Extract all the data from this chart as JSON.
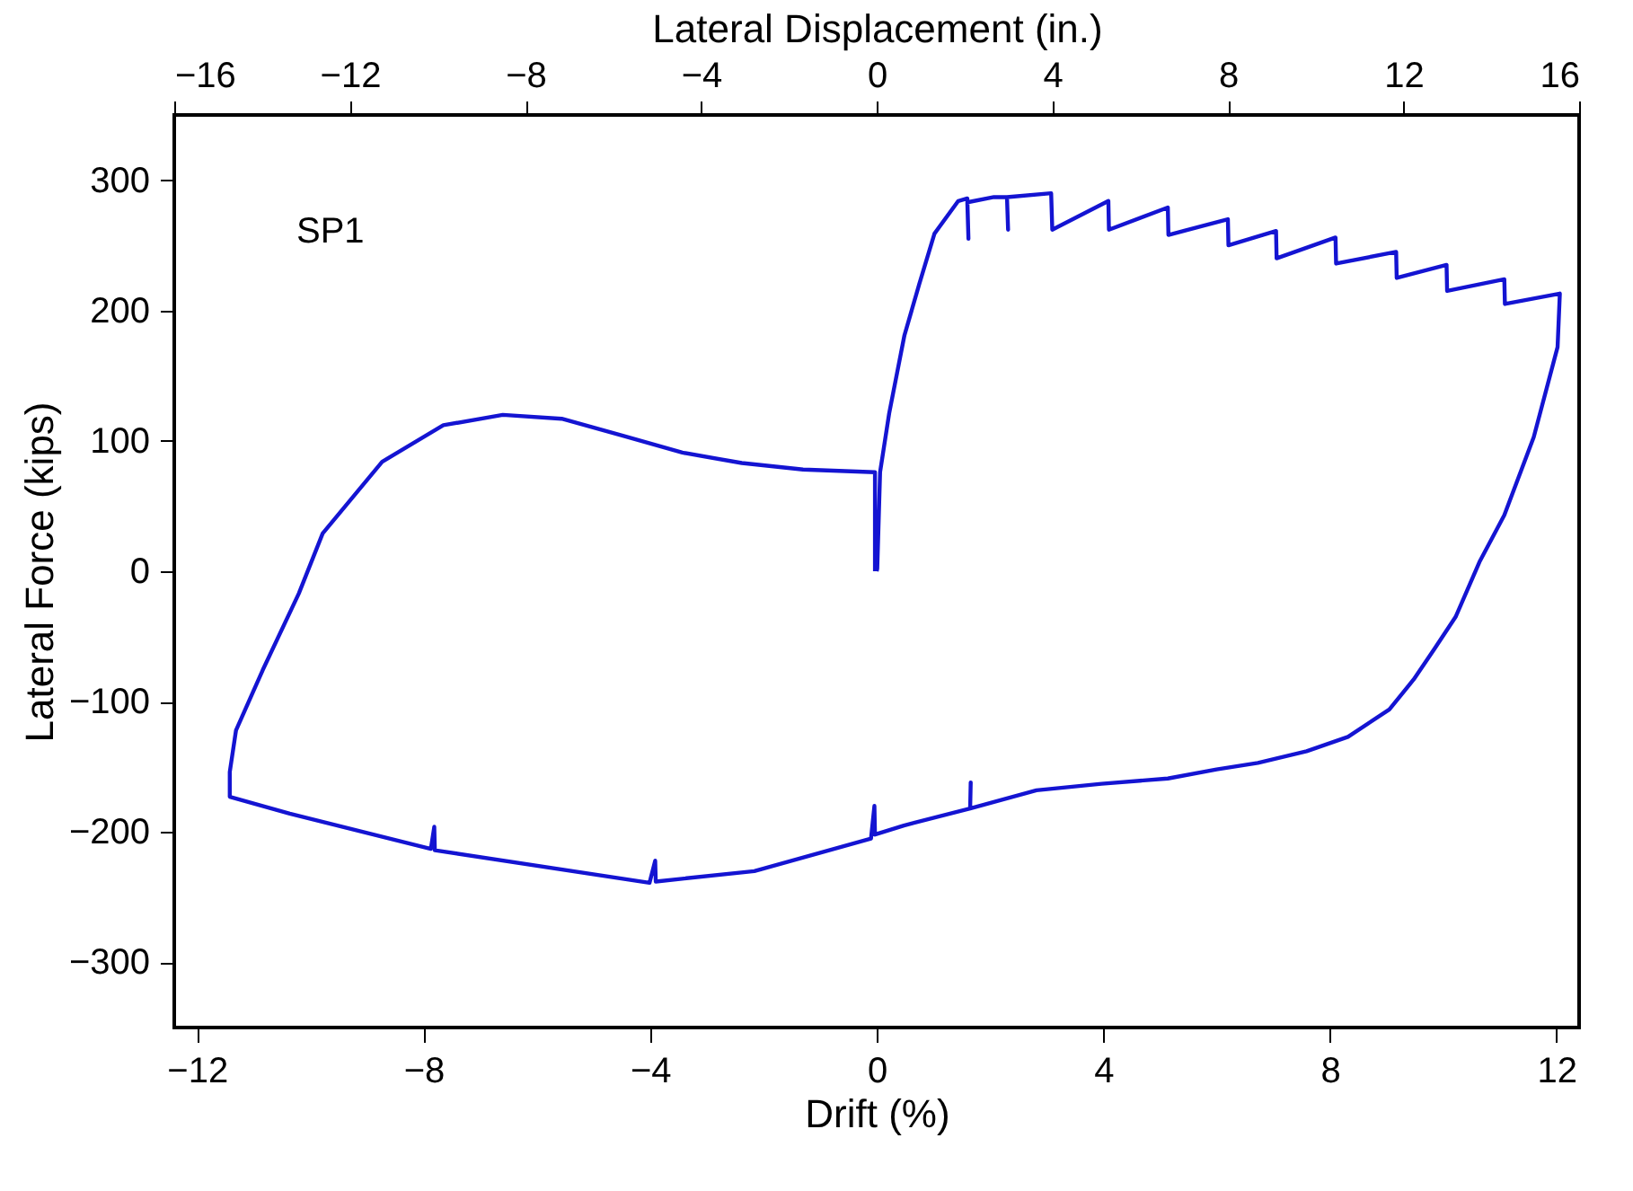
{
  "chart_data": {
    "type": "line",
    "xlabel": "Drift (%)",
    "ylabel": "Lateral Force (kips)",
    "x2label": "Lateral Displacement (in.)",
    "annotations": [
      "SP1"
    ],
    "xlim": [
      -12.4,
      12.4
    ],
    "xticks": [
      -12,
      -8,
      -4,
      0,
      4,
      8,
      12
    ],
    "x2lim": [
      -16,
      16
    ],
    "x2ticks": [
      -16,
      -12,
      -8,
      -4,
      0,
      4,
      8,
      12,
      16
    ],
    "ylim": [
      -350,
      350
    ],
    "yticks": [
      -300,
      -200,
      -100,
      0,
      100,
      200,
      300
    ],
    "grid": false,
    "marker": "none",
    "line_style": "solid",
    "series": [
      {
        "color": "#1414d2",
        "x": [
          0,
          0.01,
          0.06,
          0.22,
          0.49,
          0.75,
          1.02,
          1.44,
          1.6,
          1.62,
          1.6,
          2.07,
          2.3,
          2.32,
          2.3,
          3.08,
          3.1,
          4.09,
          4.1,
          5.14,
          5.15,
          6.2,
          6.21,
          7.05,
          7.06,
          8.1,
          8.11,
          9.17,
          9.18,
          10.06,
          10.07,
          11.08,
          11.09,
          12.06,
          12.02,
          11.6,
          11.08,
          10.64,
          10.22,
          9.84,
          9.48,
          9.05,
          8.32,
          7.59,
          6.73,
          6.0,
          5.14,
          3.97,
          2.82,
          1.65,
          1.66,
          1.65,
          0.48,
          -0.03,
          -0.04,
          -0.1,
          -2.16,
          -3.9,
          -3.91,
          -4.01,
          -7.8,
          -7.81,
          -7.87,
          -10.36,
          -11.42,
          -11.42,
          -11.31,
          -10.84,
          -10.2,
          -9.78,
          -8.73,
          -7.65,
          -6.6,
          -5.56,
          -4.48,
          -3.43,
          -2.38,
          -1.3,
          -0.03,
          -0.03,
          -0.03
        ],
        "values": [
          0,
          2,
          76,
          121,
          181,
          220,
          259,
          284,
          286,
          255,
          283,
          287,
          287,
          262,
          287,
          290,
          262,
          284,
          262,
          279,
          258,
          270,
          250,
          261,
          240,
          256,
          236,
          245,
          225,
          235,
          215,
          224,
          205,
          213,
          172,
          103,
          43,
          7,
          -35,
          -60,
          -83,
          -106,
          -127,
          -138,
          -147,
          -152,
          -159,
          -163,
          -168,
          -182,
          -162,
          -182,
          -195,
          -202,
          -180,
          -205,
          -230,
          -238,
          -222,
          -239,
          -214,
          -196,
          -213,
          -186,
          -173,
          -154,
          -122,
          -76,
          -17,
          29,
          84,
          112,
          120,
          117,
          104,
          91,
          83,
          78,
          76,
          21,
          0
        ]
      }
    ]
  }
}
